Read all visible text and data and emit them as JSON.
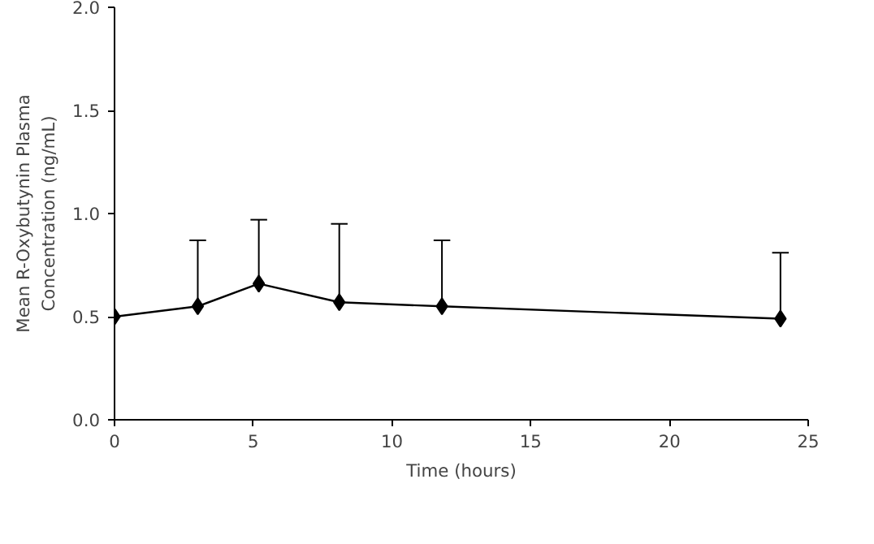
{
  "chart_data": {
    "type": "line",
    "xlabel": "Time (hours)",
    "ylabel": "Mean R-Oxybutynin Plasma\nConcentration (ng/mL)",
    "x": [
      0,
      3,
      5.2,
      8.1,
      11.8,
      24
    ],
    "series": [
      {
        "color": "#000000",
        "values": [
          0.5,
          0.55,
          0.66,
          0.57,
          0.55,
          0.49
        ],
        "errors": [
          null,
          [
            0.55,
            0.87
          ],
          [
            0.66,
            0.97
          ],
          [
            0.57,
            0.95
          ],
          [
            0.55,
            0.87
          ],
          [
            0.49,
            0.81
          ]
        ]
      }
    ],
    "xlim": [
      0,
      25
    ],
    "ylim": [
      0,
      2
    ],
    "xticks": [
      0,
      5,
      10,
      15,
      20,
      25
    ],
    "yticks": [
      {
        "value": 0,
        "label": "0.0"
      },
      0.5,
      {
        "value": 1,
        "label": "1.0"
      },
      1.5,
      {
        "value": 2,
        "label": "2.0"
      }
    ],
    "grid": false,
    "marker": "diamond",
    "line_style": "solid"
  }
}
